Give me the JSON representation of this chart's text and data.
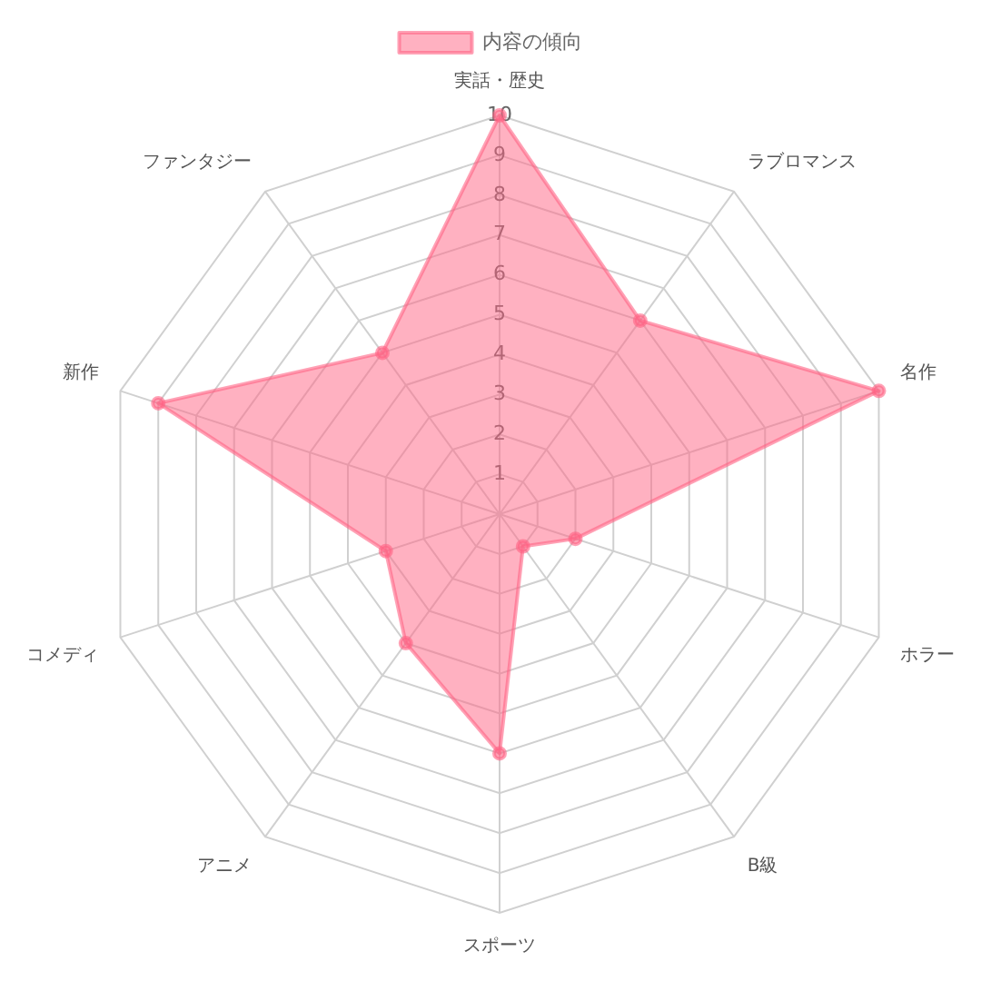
{
  "chart_data": {
    "type": "radar",
    "categories": [
      "実話・歴史",
      "ラブロマンス",
      "名作",
      "ホラー",
      "B級",
      "スポーツ",
      "アニメ",
      "コメディ",
      "新作",
      "ファンタジー"
    ],
    "series": [
      {
        "name": "内容の傾向",
        "color": "#ff6384",
        "values": [
          10,
          6,
          10,
          2,
          1,
          6,
          4,
          3,
          9,
          5
        ]
      }
    ],
    "ylim": [
      0,
      10
    ],
    "yticks": [
      1,
      2,
      3,
      4,
      5,
      6,
      7,
      8,
      9,
      10
    ],
    "grid": true,
    "legend": "top",
    "marker": "circle"
  }
}
